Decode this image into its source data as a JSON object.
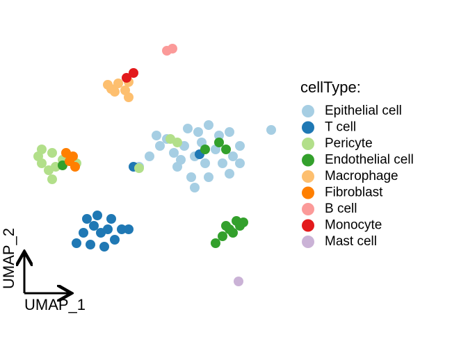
{
  "chart_data": {
    "type": "scatter",
    "xlabel": "UMAP_1",
    "ylabel": "UMAP_2",
    "legend_title": "cellType:",
    "xlim": [
      0,
      400
    ],
    "ylim": [
      0,
      430
    ],
    "series": [
      {
        "name": "Epithelial cell",
        "color": "#a6cee3",
        "x": [
          270,
          300,
          330,
          345,
          345,
          330,
          300,
          275,
          255,
          250,
          265,
          290,
          310,
          320,
          295,
          280,
          240,
          225,
          215,
          280,
          390,
          230,
          260,
          285,
          315,
          335,
          200
        ],
        "y": [
          295,
          300,
          290,
          270,
          245,
          230,
          225,
          225,
          240,
          260,
          270,
          275,
          265,
          245,
          245,
          255,
          280,
          285,
          255,
          210,
          293,
          270,
          250,
          290,
          285,
          255,
          240
        ]
      },
      {
        "name": "T cell",
        "color": "#1f78b4",
        "x": [
          125,
          140,
          160,
          175,
          165,
          150,
          130,
          110,
          120,
          145,
          185,
          192,
          287,
          135,
          155
        ],
        "y": [
          165,
          170,
          165,
          150,
          135,
          125,
          128,
          130,
          145,
          145,
          150,
          240,
          258,
          155,
          150
        ]
      },
      {
        "name": "Pericyte",
        "color": "#b2df8a",
        "x": [
          60,
          75,
          60,
          70,
          75,
          90,
          110,
          245,
          200,
          255,
          55,
          80
        ],
        "y": [
          265,
          260,
          245,
          235,
          222,
          250,
          245,
          280,
          238,
          275,
          255,
          240
        ]
      },
      {
        "name": "Endothelial cell",
        "color": "#33a02c",
        "x": [
          340,
          325,
          335,
          320,
          310,
          350,
          315,
          325,
          90,
          295,
          345,
          330
        ],
        "y": [
          162,
          155,
          145,
          140,
          130,
          160,
          275,
          265,
          242,
          265,
          155,
          150
        ]
      },
      {
        "name": "Macrophage",
        "color": "#fdbf6f",
        "x": [
          155,
          170,
          185,
          165,
          180,
          185,
          160
        ],
        "y": [
          358,
          360,
          362,
          348,
          350,
          340,
          352
        ]
      },
      {
        "name": "Fibroblast",
        "color": "#ff7f00",
        "x": [
          95,
          105,
          108,
          100
        ],
        "y": [
          260,
          255,
          240,
          248
        ]
      },
      {
        "name": "B cell",
        "color": "#fb9a99",
        "x": [
          240,
          248
        ],
        "y": [
          407,
          410
        ]
      },
      {
        "name": "Monocyte",
        "color": "#e31a1c",
        "x": [
          182,
          192
        ],
        "y": [
          368,
          375
        ]
      },
      {
        "name": "Mast cell",
        "color": "#cab2d6",
        "x": [
          343
        ],
        "y": [
          75
        ]
      }
    ]
  }
}
